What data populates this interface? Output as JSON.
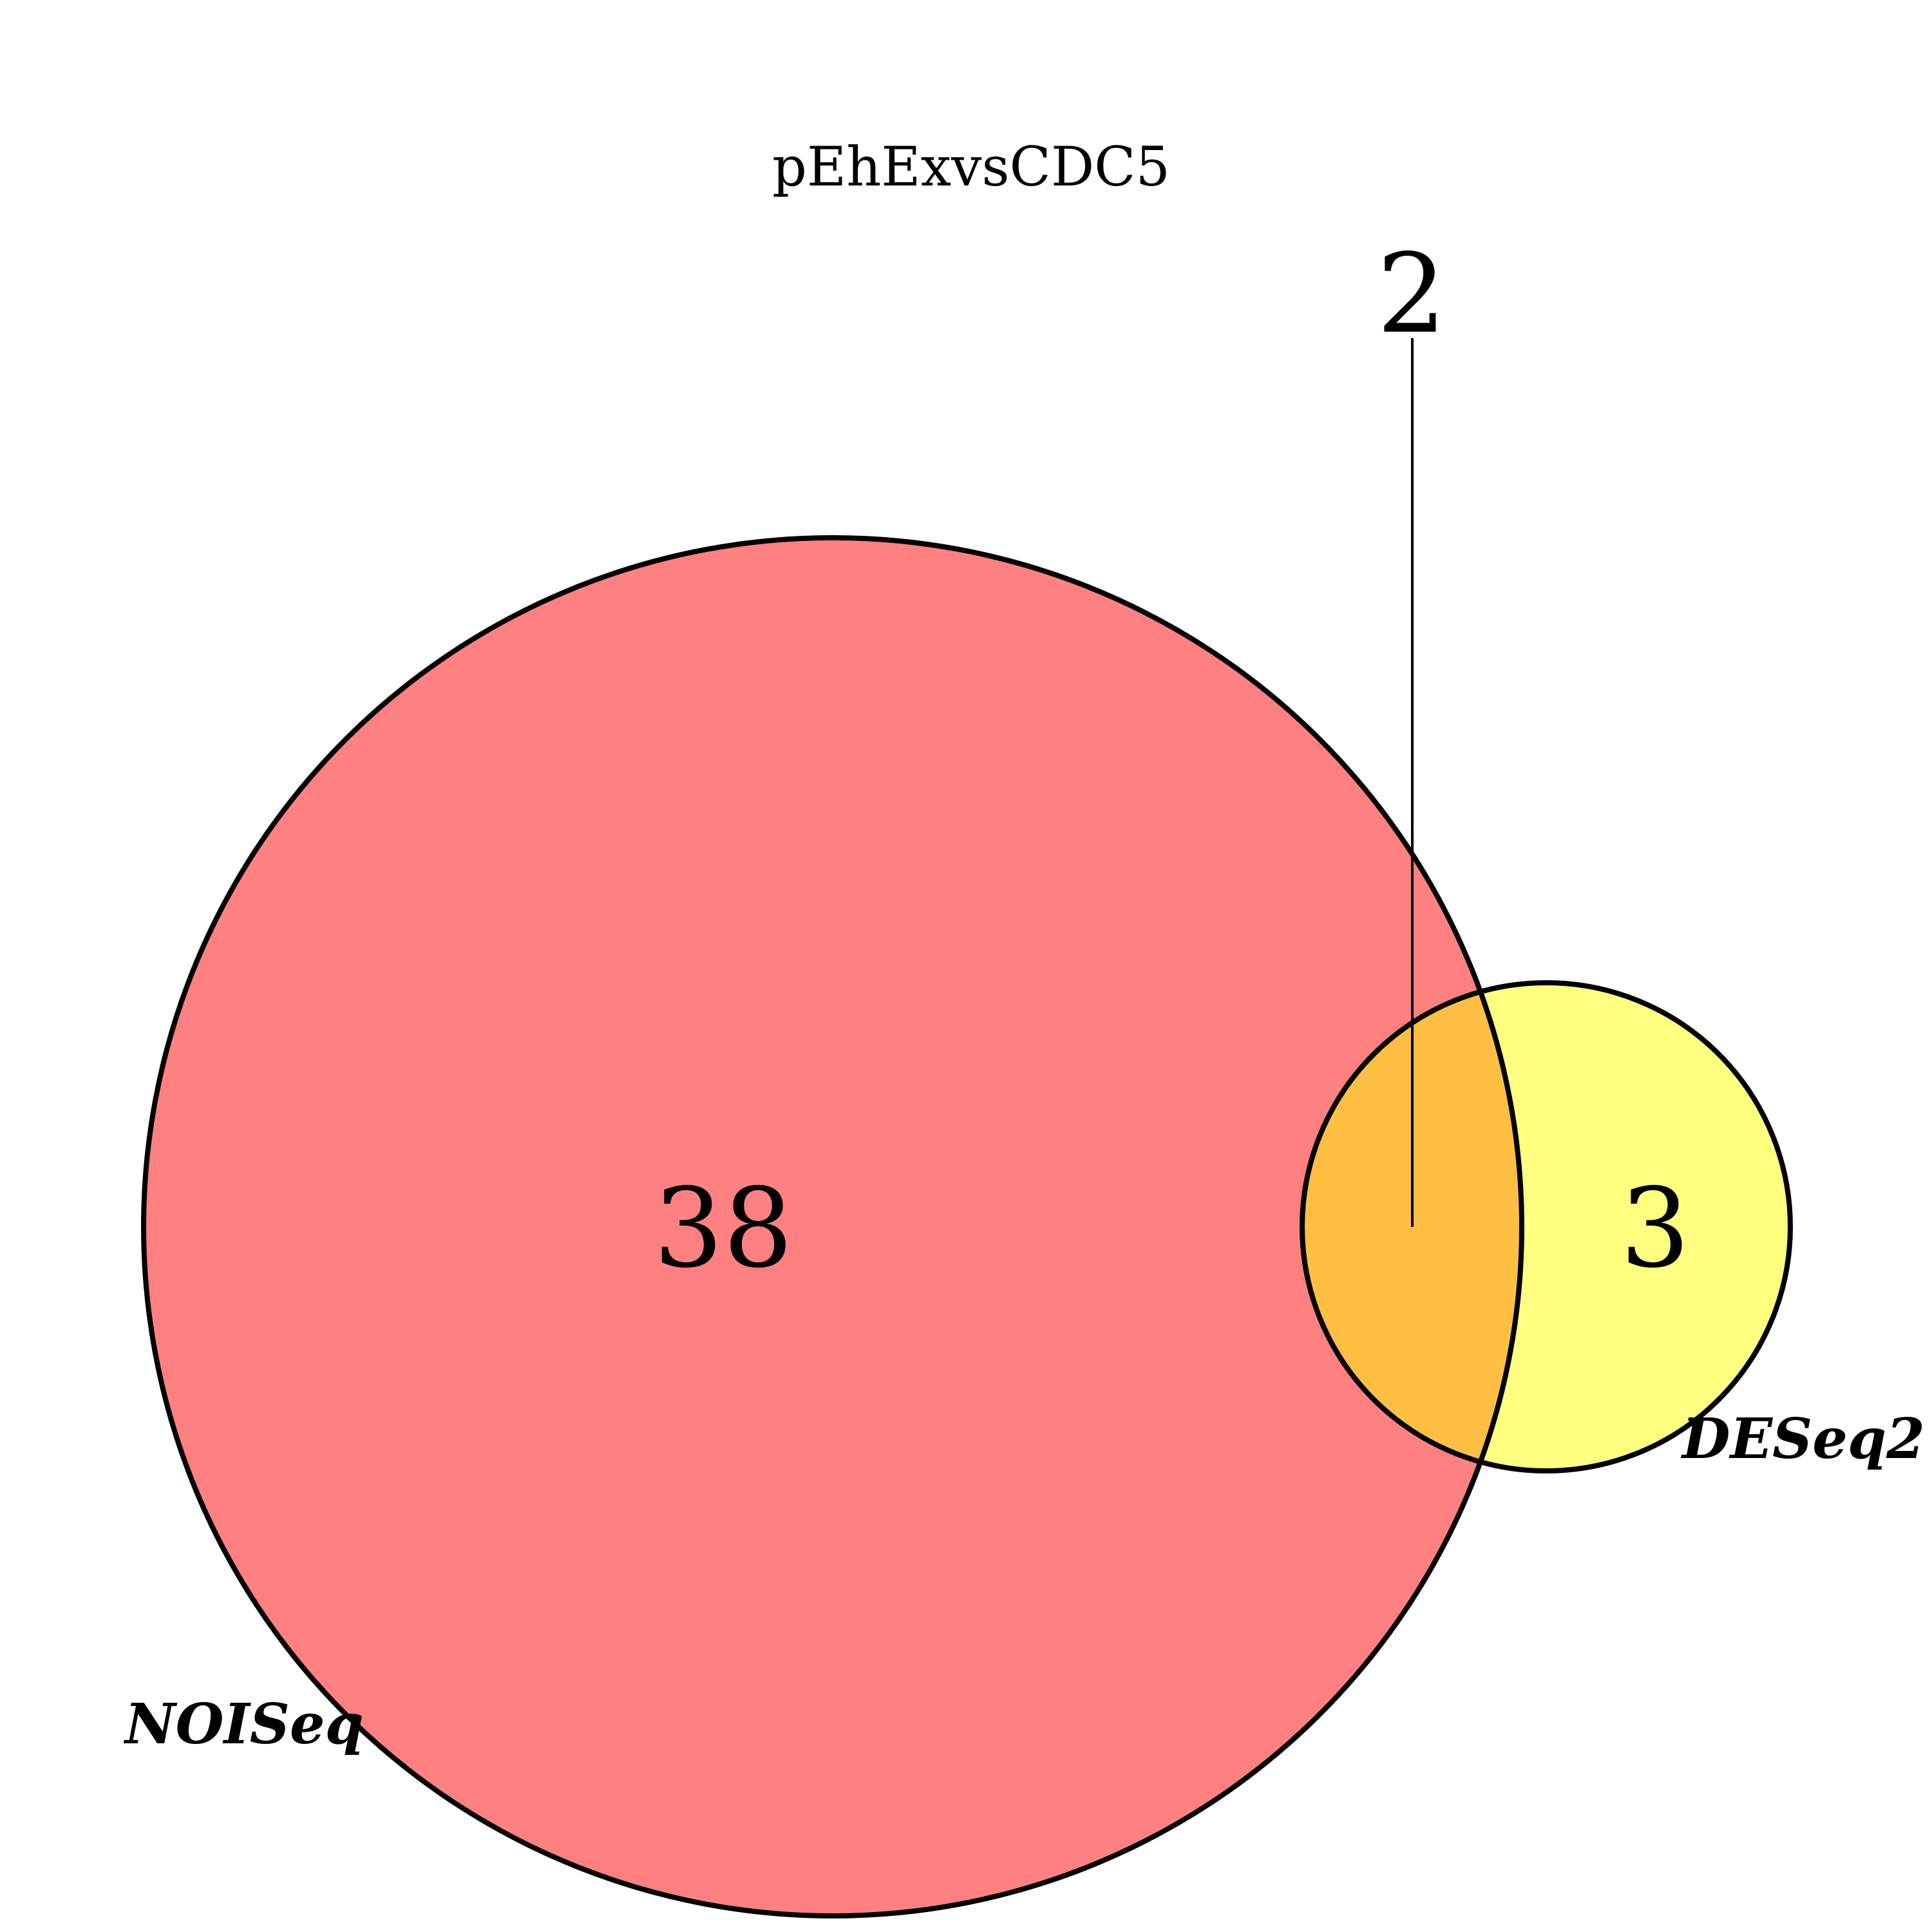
{
  "title": "pEhExvsCDC5",
  "sets": [
    {
      "name": "NOISeq",
      "color": "#ff8080"
    },
    {
      "name": "DESeq2",
      "color": "#ffff80"
    }
  ],
  "regions": {
    "noiseq_only": "38",
    "intersection": "2",
    "deseq2_only": "3"
  },
  "colors": {
    "intersection": "#ffbf43",
    "outline": "#000000",
    "background": "#ffffff"
  }
}
